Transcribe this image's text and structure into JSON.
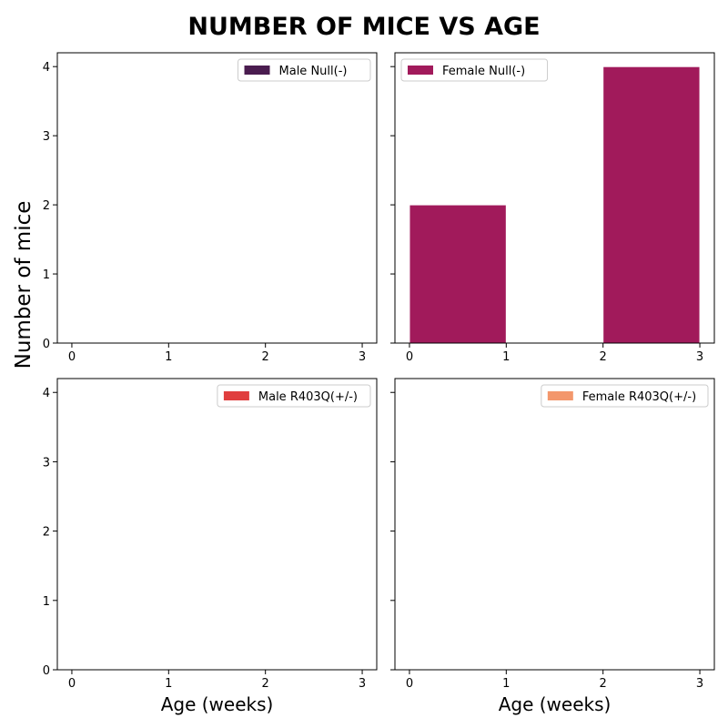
{
  "figure": {
    "title": "NUMBER OF MICE VS AGE",
    "ylabel": "Number of mice"
  },
  "chart_data": [
    {
      "type": "bar",
      "title": "",
      "xlabel": "",
      "ylabel": "",
      "xlim": [
        -0.15,
        3.15
      ],
      "ylim": [
        0,
        4.2
      ],
      "xticks": [
        "0",
        "1",
        "2",
        "3"
      ],
      "yticks": [
        "0",
        "1",
        "2",
        "3",
        "4"
      ],
      "grid": false,
      "legend_position": "top-right",
      "series": [
        {
          "name": "Male Null(-)",
          "color": "#4a1c4f",
          "bars": []
        }
      ]
    },
    {
      "type": "bar",
      "title": "",
      "xlabel": "",
      "ylabel": "",
      "xlim": [
        -0.15,
        3.15
      ],
      "ylim": [
        0,
        4.2
      ],
      "xticks": [
        "0",
        "1",
        "2",
        "3"
      ],
      "yticks": [
        "",
        "",
        "",
        "",
        ""
      ],
      "grid": false,
      "legend_position": "top-left",
      "series": [
        {
          "name": "Female Null(-)",
          "color": "#a11a5b",
          "bars": [
            {
              "x0": 0,
              "x1": 1,
              "value": 2
            },
            {
              "x0": 1,
              "x1": 2,
              "value": 0
            },
            {
              "x0": 2,
              "x1": 3,
              "value": 4
            }
          ]
        }
      ]
    },
    {
      "type": "bar",
      "title": "",
      "xlabel": "Age (weeks)",
      "ylabel": "",
      "xlim": [
        -0.15,
        3.15
      ],
      "ylim": [
        0,
        4.2
      ],
      "xticks": [
        "0",
        "1",
        "2",
        "3"
      ],
      "yticks": [
        "0",
        "1",
        "2",
        "3",
        "4"
      ],
      "grid": false,
      "legend_position": "top-right",
      "series": [
        {
          "name": "Male R403Q(+/-)",
          "color": "#e03e3e",
          "bars": []
        }
      ]
    },
    {
      "type": "bar",
      "title": "",
      "xlabel": "Age (weeks)",
      "ylabel": "",
      "xlim": [
        -0.15,
        3.15
      ],
      "ylim": [
        0,
        4.2
      ],
      "xticks": [
        "0",
        "1",
        "2",
        "3"
      ],
      "yticks": [
        "",
        "",
        "",
        "",
        ""
      ],
      "grid": false,
      "legend_position": "top-right",
      "series": [
        {
          "name": "Female R403Q(+/-)",
          "color": "#f3976c",
          "bars": []
        }
      ]
    }
  ]
}
